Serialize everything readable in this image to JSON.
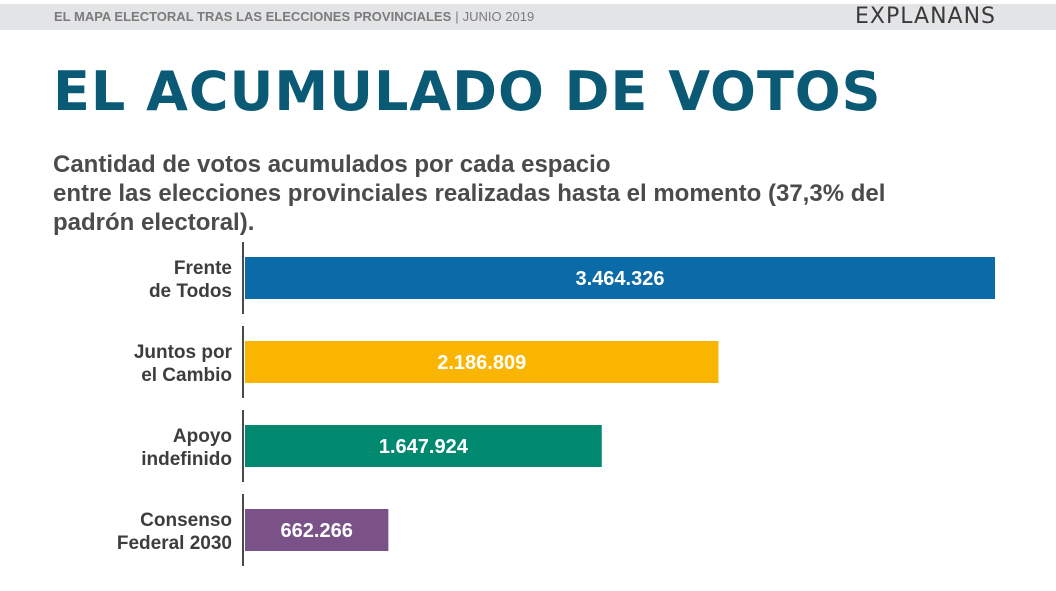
{
  "header": {
    "section": "EL MAPA ELECTORAL TRAS LAS ELECCIONES PROVINCIALES",
    "separator": "|",
    "date": "JUNIO 2019",
    "brand": "EXPLANANS"
  },
  "title": "EL ACUMULADO DE VOTOS",
  "subtitle_lines": [
    "Cantidad de votos acumulados por cada espacio",
    "entre las elecciones provinciales realizadas hasta el momento (37,3% del",
    "padrón electoral)."
  ],
  "chart_data": {
    "type": "bar",
    "orientation": "horizontal",
    "categories": [
      [
        "Frente",
        "de Todos"
      ],
      [
        "Juntos por",
        "el Cambio"
      ],
      [
        "Apoyo",
        "indefinido"
      ],
      [
        "Consenso",
        "Federal 2030"
      ]
    ],
    "values": [
      3464326,
      2186809,
      1647924,
      662266
    ],
    "value_labels": [
      "3.464.326",
      "2.186.809",
      "1.647.924",
      "662.266"
    ],
    "colors": [
      "#0b6aa8",
      "#fab500",
      "#00896f",
      "#7a5288"
    ],
    "xlim": [
      0,
      3464326
    ],
    "grid": false,
    "legend": "none"
  }
}
